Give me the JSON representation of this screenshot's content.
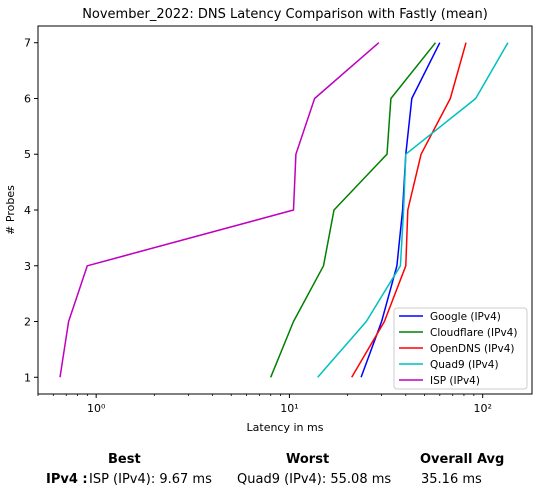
{
  "chart_data": {
    "type": "line",
    "title": "November_2022: DNS Latency Comparison with Fastly (mean)",
    "xlabel": "Latency in ms",
    "ylabel": "# Probes",
    "xscale": "log",
    "xlim": [
      0.5,
      180
    ],
    "ylim": [
      0.7,
      7.3
    ],
    "xticks": [
      {
        "value": 1,
        "label": "10⁰"
      },
      {
        "value": 10,
        "label": "10¹"
      },
      {
        "value": 100,
        "label": "10²"
      }
    ],
    "yticks": [
      1,
      2,
      3,
      4,
      5,
      6,
      7
    ],
    "grid": false,
    "legend_position": "bottom-right",
    "series": [
      {
        "name": "Google (IPv4)",
        "color": "#0000ff",
        "points": [
          [
            23.5,
            1
          ],
          [
            30,
            2
          ],
          [
            36,
            3
          ],
          [
            38.5,
            4
          ],
          [
            40,
            5
          ],
          [
            43,
            6
          ],
          [
            60,
            7
          ]
        ]
      },
      {
        "name": "Cloudflare (IPv4)",
        "color": "#008000",
        "points": [
          [
            8,
            1
          ],
          [
            10.5,
            2
          ],
          [
            15,
            3
          ],
          [
            17,
            4
          ],
          [
            32,
            5
          ],
          [
            33.5,
            6
          ],
          [
            57,
            7
          ]
        ]
      },
      {
        "name": "OpenDNS (IPv4)",
        "color": "#ff0000",
        "points": [
          [
            21,
            1
          ],
          [
            31,
            2
          ],
          [
            40,
            3
          ],
          [
            41,
            4
          ],
          [
            48,
            5
          ],
          [
            68,
            6
          ],
          [
            82,
            7
          ]
        ]
      },
      {
        "name": "Quad9 (IPv4)",
        "color": "#00bfbf",
        "points": [
          [
            14,
            1
          ],
          [
            25,
            2
          ],
          [
            37.5,
            3
          ],
          [
            39,
            4
          ],
          [
            40,
            5
          ],
          [
            92,
            6
          ],
          [
            135,
            7
          ]
        ]
      },
      {
        "name": "ISP (IPv4)",
        "color": "#bf00bf",
        "points": [
          [
            0.65,
            1
          ],
          [
            0.72,
            2
          ],
          [
            0.9,
            3
          ],
          [
            10.5,
            4
          ],
          [
            10.8,
            5
          ],
          [
            13.5,
            6
          ],
          [
            29,
            7
          ]
        ]
      }
    ]
  },
  "summary": {
    "best_header": "Best",
    "worst_header": "Worst",
    "avg_header": "Overall Avg",
    "row_label": "IPv4 :",
    "best_value": "ISP (IPv4): 9.67 ms",
    "worst_value": "Quad9 (IPv4): 55.08 ms",
    "avg_value": "35.16 ms"
  }
}
